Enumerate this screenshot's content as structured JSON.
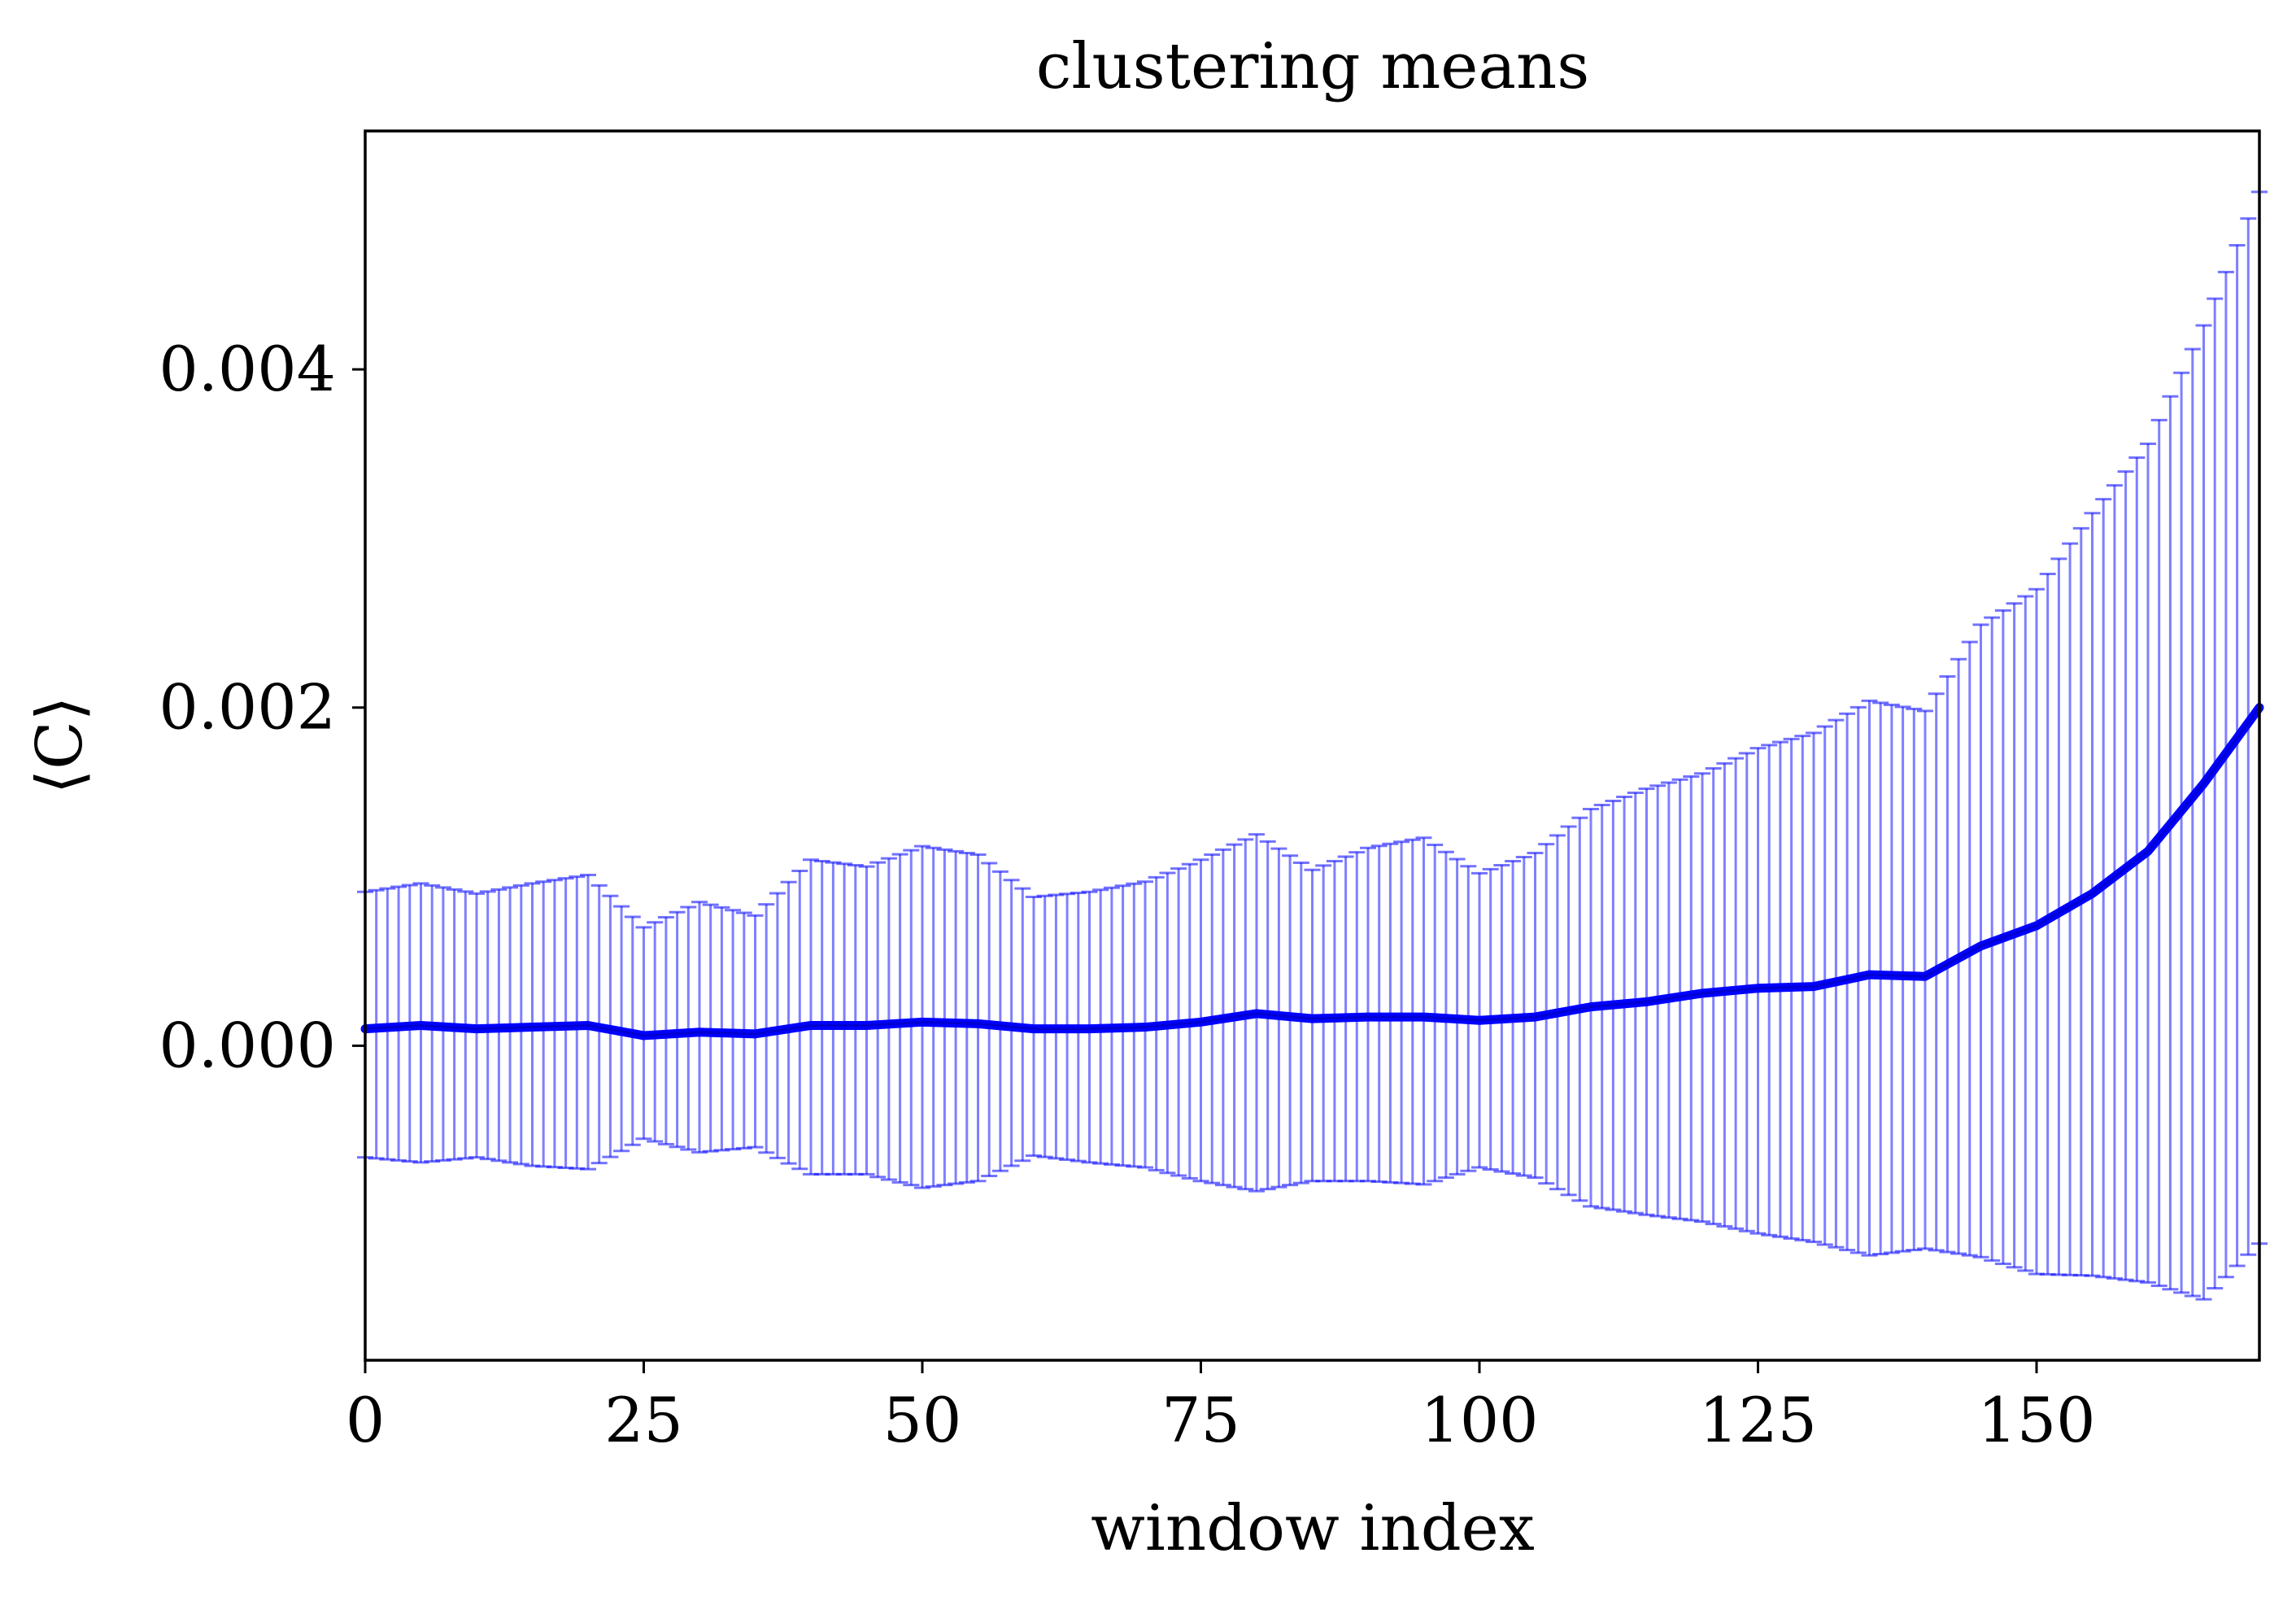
{
  "chart_data": {
    "type": "line",
    "title": "clustering means",
    "xlabel": "window index",
    "ylabel": "⟨C⟩",
    "xlim": [
      0,
      170
    ],
    "ylim": [
      -0.00186,
      0.00541
    ],
    "xticks": [
      0,
      25,
      50,
      75,
      100,
      125,
      150
    ],
    "xtick_labels": [
      "0",
      "25",
      "50",
      "75",
      "100",
      "125",
      "150"
    ],
    "yticks": [
      0.0,
      0.002,
      0.004
    ],
    "ytick_labels": [
      "0.000",
      "0.002",
      "0.004"
    ],
    "grid": false,
    "colors": {
      "line": "#0000ff",
      "errorbar": "#0000ff",
      "axes": "#000000"
    },
    "series": [
      {
        "style": "line with vertical error bars",
        "x": [
          0,
          5,
          10,
          15,
          20,
          25,
          30,
          35,
          40,
          45,
          50,
          55,
          60,
          65,
          70,
          75,
          80,
          85,
          90,
          95,
          100,
          105,
          110,
          115,
          120,
          125,
          130,
          135,
          140,
          145,
          150,
          155,
          160,
          165,
          170
        ],
        "y": [
          0.0001,
          0.00012,
          0.0001,
          0.00011,
          0.00012,
          6e-05,
          8e-05,
          7e-05,
          0.00012,
          0.00012,
          0.00014,
          0.00013,
          0.0001,
          0.0001,
          0.00011,
          0.00014,
          0.00019,
          0.00016,
          0.00017,
          0.00017,
          0.00015,
          0.00017,
          0.00023,
          0.00026,
          0.00031,
          0.00034,
          0.00035,
          0.00042,
          0.00041,
          0.00059,
          0.00071,
          0.0009,
          0.00115,
          0.00155,
          0.002
        ],
        "err_upper": [
          0.00091,
          0.00096,
          0.0009,
          0.00096,
          0.00101,
          0.0007,
          0.00085,
          0.00077,
          0.0011,
          0.00106,
          0.00118,
          0.00113,
          0.00088,
          0.00091,
          0.00097,
          0.0011,
          0.00125,
          0.00104,
          0.00117,
          0.00123,
          0.00102,
          0.00114,
          0.0014,
          0.00152,
          0.00161,
          0.00176,
          0.00185,
          0.00204,
          0.00198,
          0.00249,
          0.0027,
          0.00315,
          0.00356,
          0.00426,
          0.00505
        ],
        "err_lower": [
          -0.00066,
          -0.00069,
          -0.00066,
          -0.00071,
          -0.00073,
          -0.00055,
          -0.00063,
          -0.0006,
          -0.00076,
          -0.00076,
          -0.00084,
          -0.0008,
          -0.00065,
          -0.00069,
          -0.00072,
          -0.0008,
          -0.00086,
          -0.0008,
          -0.0008,
          -0.00082,
          -0.00072,
          -0.00078,
          -0.00095,
          -0.001,
          -0.00104,
          -0.00111,
          -0.00116,
          -0.00124,
          -0.0012,
          -0.00125,
          -0.00135,
          -0.00136,
          -0.0014,
          -0.0015,
          -0.00117
        ]
      }
    ]
  }
}
